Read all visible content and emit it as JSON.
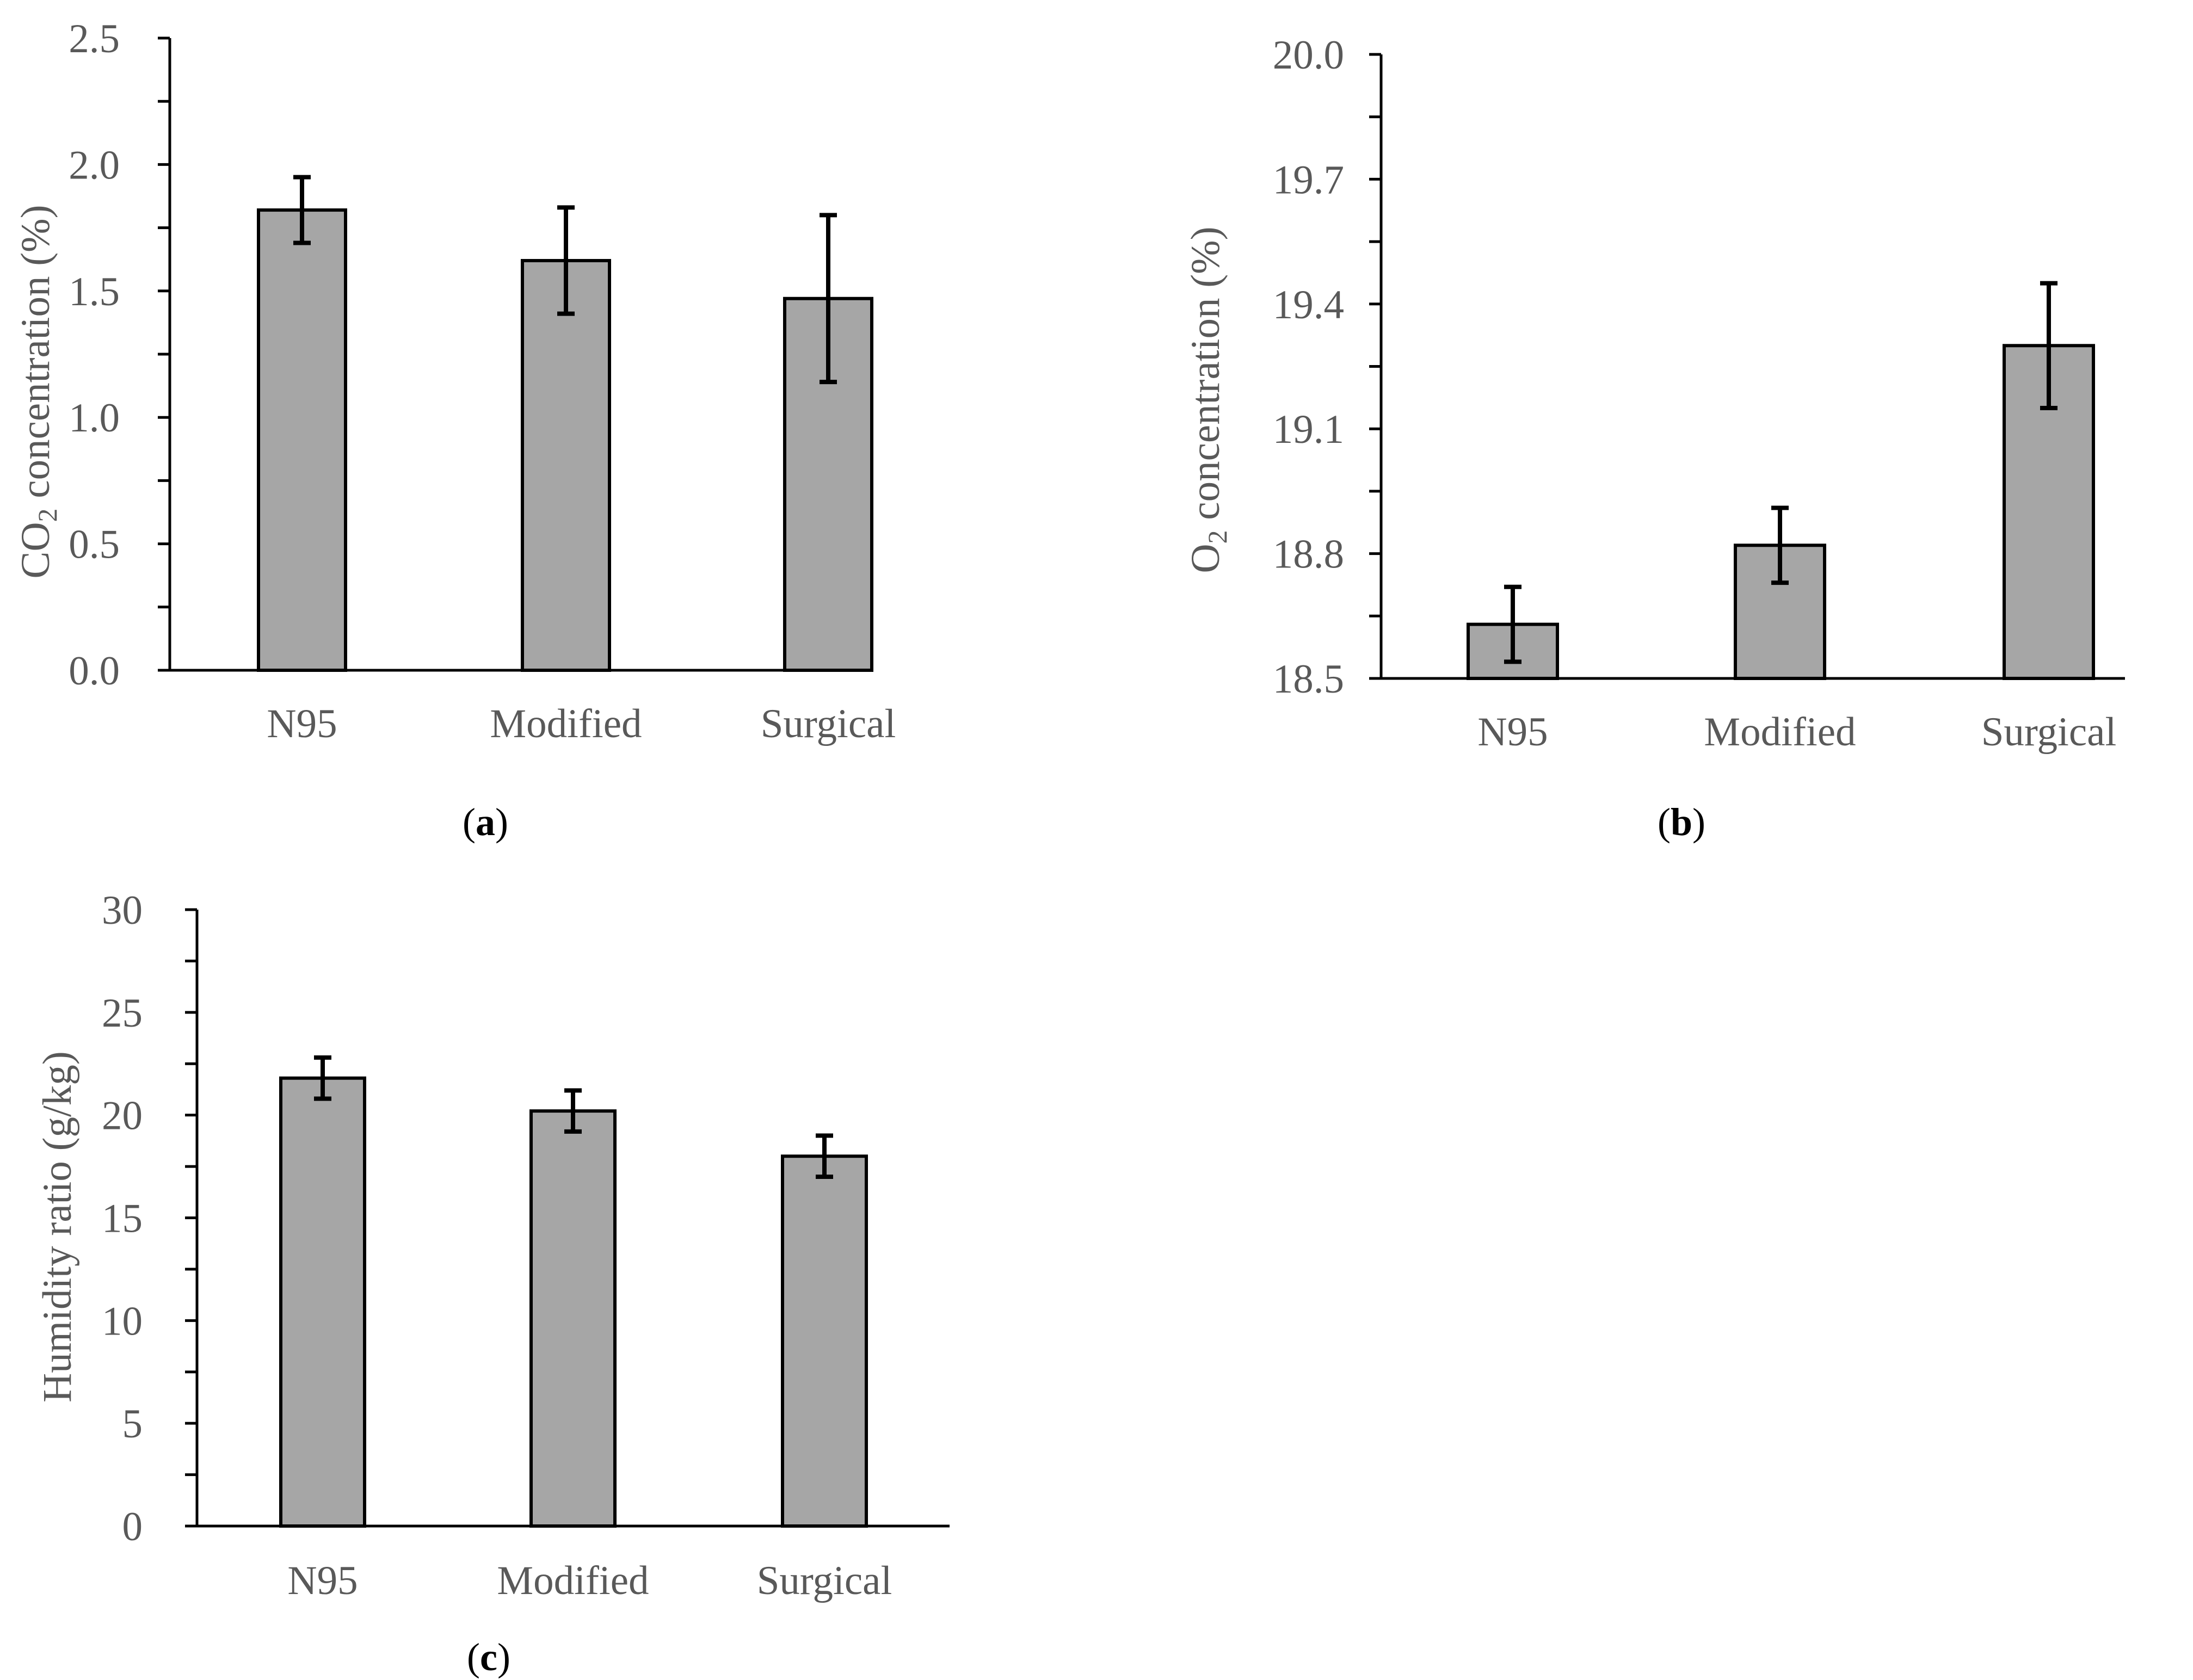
{
  "colors": {
    "bar_fill": "#a6a6a6",
    "bar_stroke": "#000000",
    "axis": "#000000",
    "text": "#595959",
    "panel_label": "#000000"
  },
  "chart_data": [
    {
      "id": "a",
      "type": "bar",
      "panel_label": "a",
      "title": "",
      "xlabel": "",
      "ylabel_main": "CO",
      "ylabel_sub": "2",
      "ylabel_rest": " concentration (%)",
      "categories": [
        "N95",
        "Modified",
        "Surgical"
      ],
      "values": [
        1.82,
        1.62,
        1.47
      ],
      "errors": [
        0.13,
        0.21,
        0.33
      ],
      "ylim": [
        0,
        2.5
      ],
      "major_step": 0.5,
      "minor_step": 0.25,
      "tick_labels": [
        "0.0",
        "0.5",
        "1.0",
        "1.5",
        "2.0",
        "2.5"
      ],
      "grid": false
    },
    {
      "id": "b",
      "type": "bar",
      "panel_label": "b",
      "title": "",
      "xlabel": "",
      "ylabel_main": "O",
      "ylabel_sub": "2",
      "ylabel_rest": " concentration (%)",
      "categories": [
        "N95",
        "Modified",
        "Surgical"
      ],
      "values": [
        18.63,
        18.82,
        19.3
      ],
      "errors": [
        0.09,
        0.09,
        0.15
      ],
      "ylim": [
        18.5,
        20.0
      ],
      "major_step": 0.3,
      "minor_step": 0.15,
      "tick_labels": [
        "18.5",
        "18.8",
        "19.1",
        "19.4",
        "19.7",
        "20.0"
      ],
      "grid": false
    },
    {
      "id": "c",
      "type": "bar",
      "panel_label": "c",
      "title": "",
      "xlabel": "",
      "ylabel_main": "Humidity ratio (g/kg)",
      "ylabel_sub": "",
      "ylabel_rest": "",
      "categories": [
        "N95",
        "Modified",
        "Surgical"
      ],
      "values": [
        21.8,
        20.2,
        18.0
      ],
      "errors": [
        1.0,
        1.0,
        1.0
      ],
      "ylim": [
        0,
        30
      ],
      "major_step": 5,
      "minor_step": 2.5,
      "tick_labels": [
        "0",
        "5",
        "10",
        "15",
        "20",
        "25",
        "30"
      ],
      "grid": false
    }
  ]
}
